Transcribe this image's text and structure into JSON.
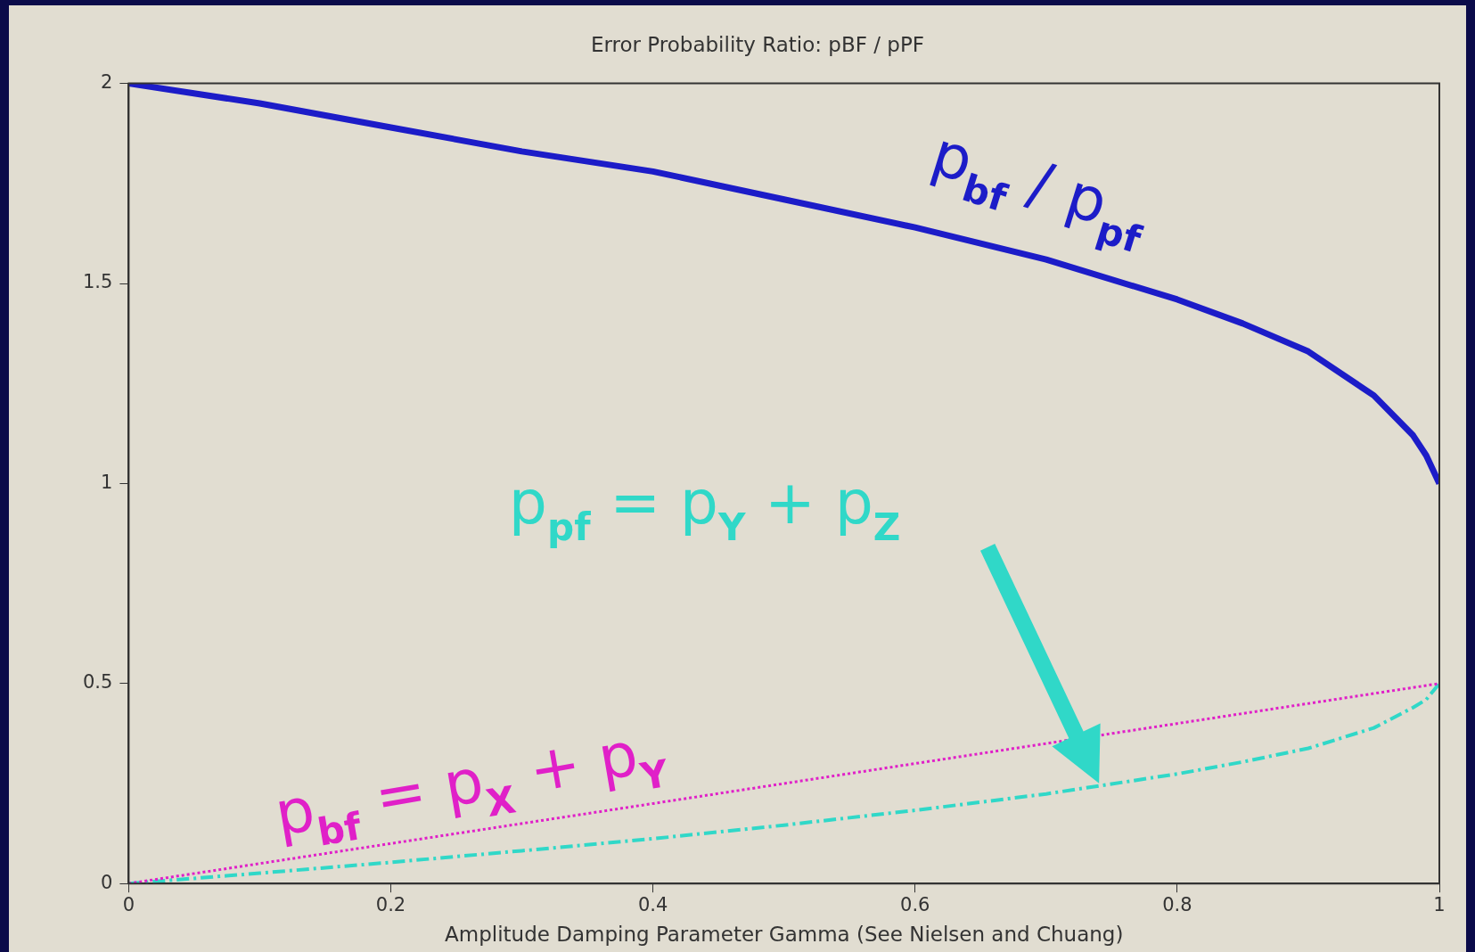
{
  "chart_data": {
    "type": "line",
    "title": "Error Probability Ratio: pBF / pPF",
    "xlabel": "Amplitude Damping Parameter Gamma (See Nielsen and Chuang)",
    "xlim": [
      0,
      1
    ],
    "xticks": [
      0,
      0.2,
      0.4,
      0.6,
      0.8,
      1
    ],
    "ylim": [
      0,
      2
    ],
    "yticks": [
      0,
      0.5,
      1,
      1.5,
      2
    ],
    "grid": false,
    "legend": false,
    "marker": "none",
    "series": [
      {
        "name": "p$_{bf}$ / p$_{pf}$",
        "color": "#1c1cc8",
        "line_style": "solid",
        "x": [
          0,
          0.1,
          0.2,
          0.3,
          0.4,
          0.5,
          0.6,
          0.7,
          0.8,
          0.85,
          0.9,
          0.95,
          0.98,
          0.99,
          1
        ],
        "values": [
          2,
          1.95,
          1.89,
          1.83,
          1.78,
          1.71,
          1.64,
          1.56,
          1.46,
          1.4,
          1.33,
          1.22,
          1.12,
          1.07,
          1
        ]
      },
      {
        "name": "p$_{bf}$ = p$_{X}$ + p$_{Y}$",
        "color": "#e020c8",
        "line_style": "dotted",
        "x": [
          0,
          0.2,
          0.4,
          0.6,
          0.8,
          1
        ],
        "values": [
          0,
          0.1,
          0.2,
          0.3,
          0.4,
          0.5
        ]
      },
      {
        "name": "p$_{pf}$ = p$_{Y}$ + p$_{Z}$",
        "color": "#30d8c8",
        "line_style": "dashed",
        "x": [
          0,
          0.1,
          0.2,
          0.3,
          0.4,
          0.5,
          0.6,
          0.7,
          0.8,
          0.85,
          0.9,
          0.95,
          0.98,
          0.99,
          1
        ],
        "values": [
          0,
          0.026,
          0.053,
          0.082,
          0.112,
          0.146,
          0.183,
          0.224,
          0.274,
          0.304,
          0.338,
          0.389,
          0.44,
          0.46,
          0.5
        ]
      }
    ]
  }
}
